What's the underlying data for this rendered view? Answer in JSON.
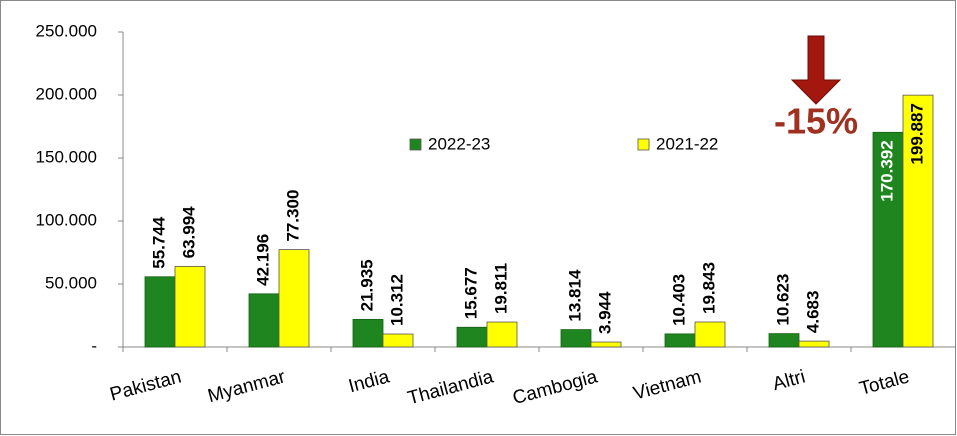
{
  "chart_data": {
    "type": "bar",
    "categories": [
      "Pakistan",
      "Myanmar",
      "India",
      "Thailandia",
      "Cambogia",
      "Vietnam",
      "Altri",
      "Totale"
    ],
    "series": [
      {
        "name": "2022-23",
        "color": "#1f861f",
        "values": [
          55744,
          42196,
          21935,
          15677,
          13814,
          10403,
          10623,
          170392
        ],
        "value_labels": [
          "55.744",
          "42.196",
          "21.935",
          "15.677",
          "13.814",
          "10.403",
          "10.623",
          "170.392"
        ]
      },
      {
        "name": "2021-22",
        "color": "#ffff00",
        "values": [
          63994,
          77300,
          10312,
          19811,
          3944,
          19843,
          4683,
          199887
        ],
        "value_labels": [
          "63.994",
          "77.300",
          "10.312",
          "19.811",
          "3.944",
          "19.843",
          "4.683",
          "199.887"
        ]
      }
    ],
    "ylim": [
      0,
      250000
    ],
    "yticks": [
      {
        "value": 0,
        "label": "-"
      },
      {
        "value": 50000,
        "label": "50.000"
      },
      {
        "value": 100000,
        "label": "100.000"
      },
      {
        "value": 150000,
        "label": "150.000"
      },
      {
        "value": 200000,
        "label": "200.000"
      },
      {
        "value": 250000,
        "label": "250.000"
      }
    ],
    "annotation": "-15%",
    "legend": "top"
  }
}
